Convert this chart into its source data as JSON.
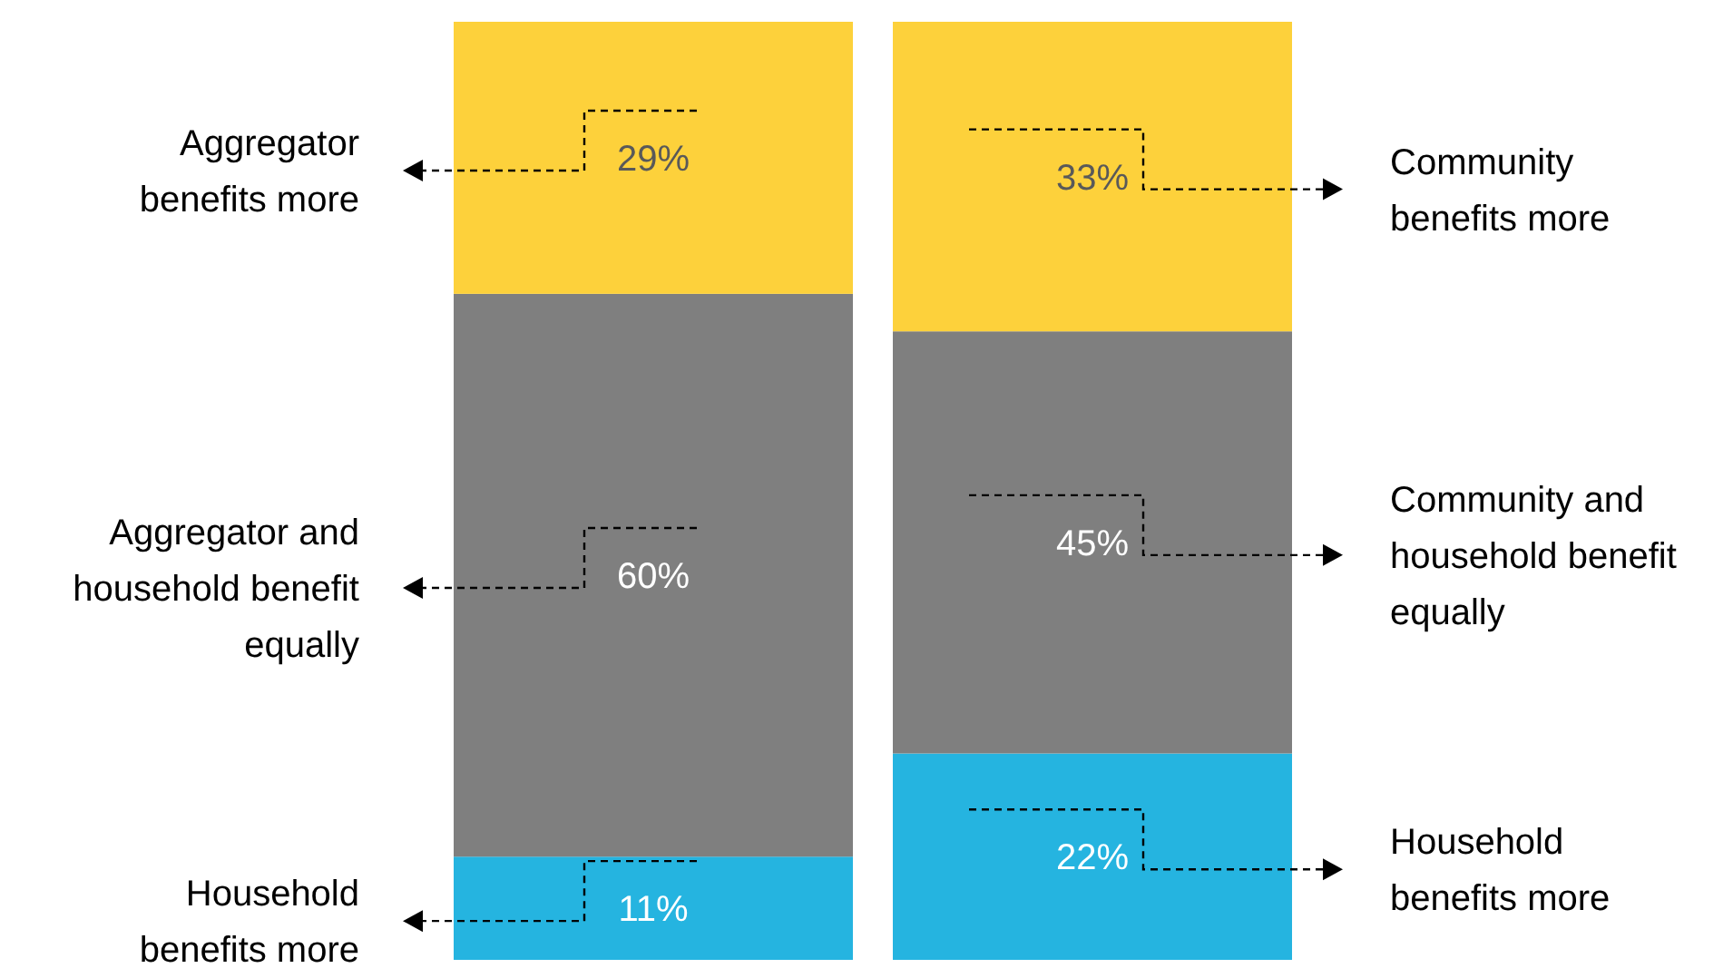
{
  "chart_data": [
    {
      "type": "bar",
      "stacked": true,
      "categories": [
        null
      ],
      "legend": false,
      "series": [
        {
          "name": "Household benefits more",
          "color": "#25b4e0",
          "values": [
            11
          ],
          "value_labels": [
            "11%"
          ]
        },
        {
          "name": "Aggregator and household benefit equally",
          "color": "#7f7f7f",
          "values": [
            60
          ],
          "value_labels": [
            "60%"
          ]
        },
        {
          "name": "Aggregator benefits more",
          "color": "#fdd13b",
          "values": [
            29
          ],
          "value_labels": [
            "29%"
          ]
        }
      ]
    },
    {
      "type": "bar",
      "stacked": true,
      "categories": [
        null
      ],
      "legend": false,
      "series": [
        {
          "name": "Household benefits more",
          "color": "#25b4e0",
          "values": [
            22
          ],
          "value_labels": [
            "22%"
          ]
        },
        {
          "name": "Community and household benefit equally",
          "color": "#7f7f7f",
          "values": [
            45
          ],
          "value_labels": [
            "45%"
          ]
        },
        {
          "name": "Community benefits more",
          "color": "#fdd13b",
          "values": [
            33
          ],
          "value_labels": [
            "33%"
          ]
        }
      ]
    }
  ]
}
